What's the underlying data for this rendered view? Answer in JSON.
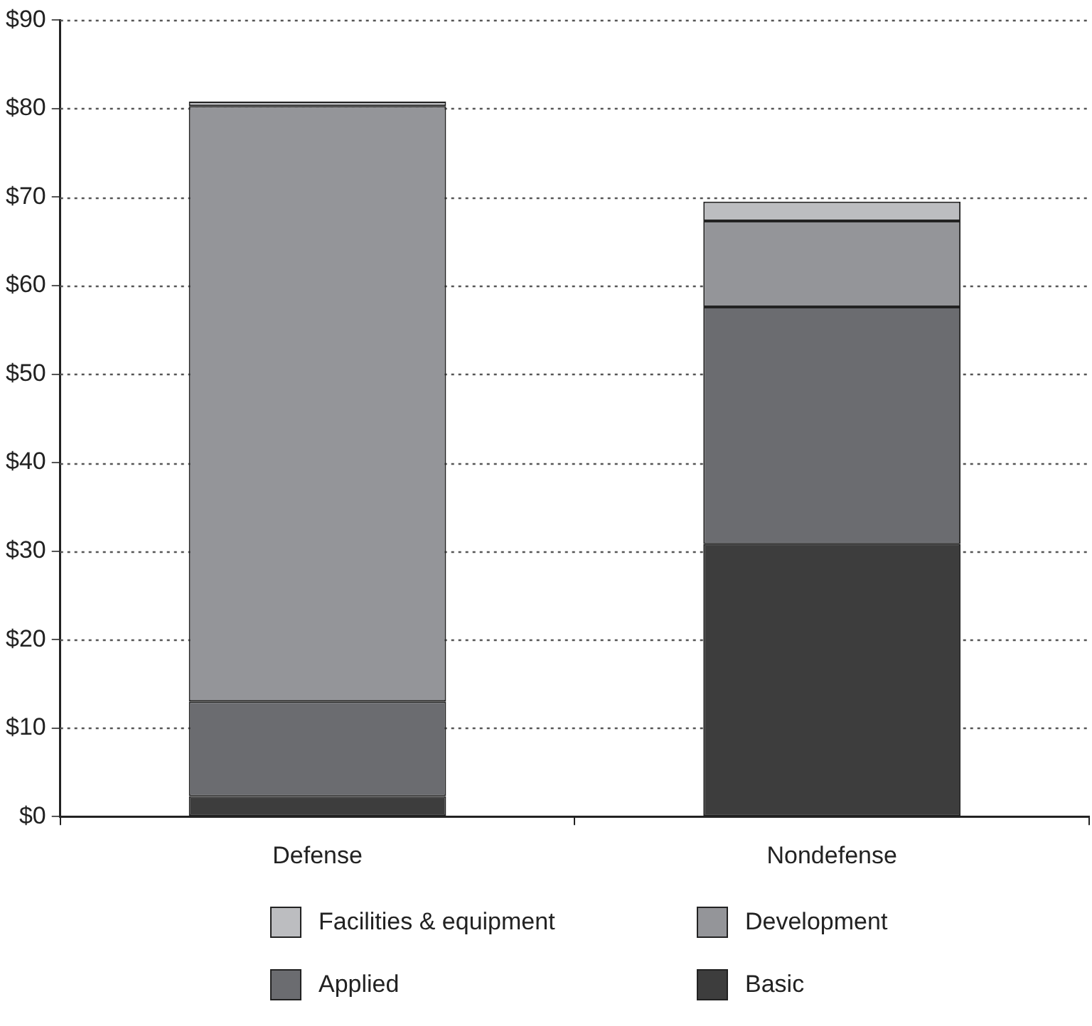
{
  "chart_data": {
    "type": "bar",
    "stacked": true,
    "categories": [
      "Defense",
      "Nondefense"
    ],
    "series": [
      {
        "name": "Basic",
        "color": "#3d3d3d",
        "values": [
          2.3,
          30.8
        ]
      },
      {
        "name": "Applied",
        "color": "#6b6c70",
        "values": [
          10.7,
          26.8
        ]
      },
      {
        "name": "Development",
        "color": "#949599",
        "values": [
          67.3,
          9.7
        ]
      },
      {
        "name": "Facilities & equipment",
        "color": "#bcbdc0",
        "values": [
          0.5,
          2.2
        ]
      }
    ],
    "ylim": [
      0,
      90
    ],
    "yticks": [
      {
        "value": 0,
        "label": "$0"
      },
      {
        "value": 10,
        "label": "$10"
      },
      {
        "value": 20,
        "label": "$20"
      },
      {
        "value": 30,
        "label": "$30"
      },
      {
        "value": 40,
        "label": "$40"
      },
      {
        "value": 50,
        "label": "$50"
      },
      {
        "value": 60,
        "label": "$60"
      },
      {
        "value": 70,
        "label": "$70"
      },
      {
        "value": 80,
        "label": "$80"
      },
      {
        "value": 90,
        "label": "$90"
      }
    ],
    "grid": "y",
    "legend": "bottom"
  }
}
